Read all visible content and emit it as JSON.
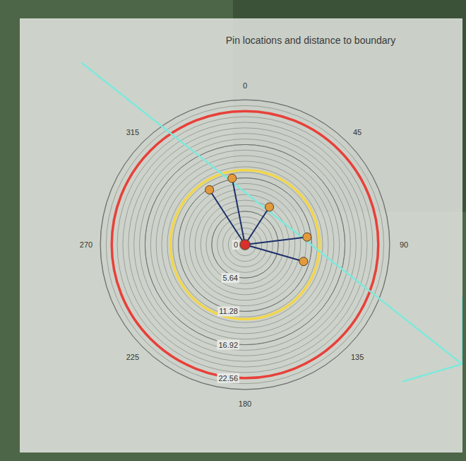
{
  "chart_data": {
    "type": "polar",
    "title": "Pin locations and distance to boundary",
    "thetalim": [
      0,
      360
    ],
    "theta_ticks": [
      0,
      45,
      90,
      135,
      180,
      225,
      270,
      315
    ],
    "rlim": [
      0,
      24.5
    ],
    "rticks": [
      0,
      5.64,
      11.28,
      16.92,
      22.56
    ],
    "grid": true,
    "series": [
      {
        "type": "ring",
        "color": "#e8403a",
        "values": [
          22.56
        ]
      },
      {
        "type": "ring",
        "color": "#f2d64b",
        "values": [
          12.62
        ]
      },
      {
        "type": "line",
        "color": "#7fe8dc",
        "theta": [
          318,
          118.8,
          131,
          null,
          103.5,
          118.8
        ],
        "values": [
          41.4,
          41.9,
          35.3,
          null,
          37.8,
          41.9
        ]
      },
      {
        "type": "scatter",
        "color": "#e39a3b",
        "marker": "circle",
        "line_style": "spokes",
        "theta": [
          327,
          349,
          33,
          83,
          106
        ],
        "values": [
          11.05,
          11.42,
          7.58,
          10.58,
          10.31
        ]
      },
      {
        "type": "scatter",
        "color": "#d9302c",
        "marker": "circle",
        "theta": [
          0
        ],
        "values": [
          0
        ]
      }
    ]
  }
}
